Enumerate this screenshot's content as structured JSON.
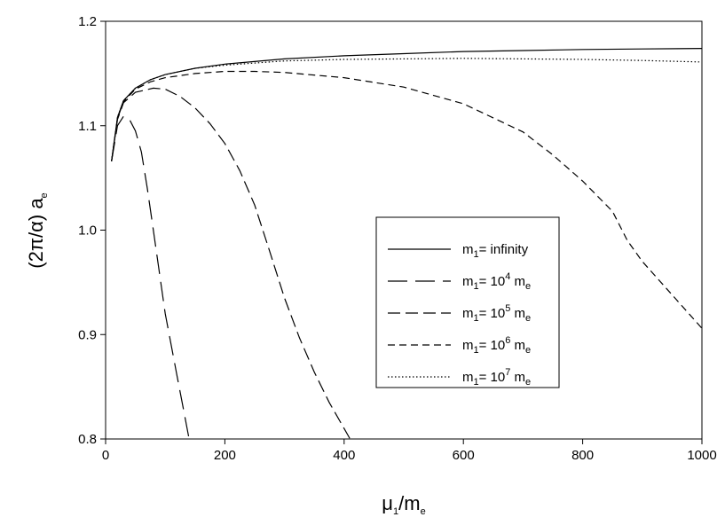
{
  "chart_data": {
    "type": "line",
    "xlabel": {
      "base": "μ",
      "base_sub": "1",
      "rest": "/m",
      "rest_sub": "e"
    },
    "ylabel": {
      "base": "(2π/α) a",
      "sub": "e"
    },
    "xlim": [
      0,
      1000
    ],
    "ylim": [
      0.8,
      1.2
    ],
    "x_ticks": [
      0,
      200,
      400,
      600,
      800,
      1000
    ],
    "y_ticks": [
      0.8,
      0.9,
      1.0,
      1.1,
      1.2
    ],
    "x_tick_labels": [
      "0",
      "200",
      "400",
      "600",
      "800",
      "1000"
    ],
    "y_tick_labels": [
      "0.8",
      "0.9",
      "1.0",
      "1.1",
      "1.2"
    ],
    "grid": false,
    "legend_position": "center-right",
    "series": [
      {
        "name": "m1= infinity",
        "label": {
          "pre": "m",
          "pre_sub": "1",
          "mid": "= infinity",
          "sup": "",
          "post": "",
          "post_sub": ""
        },
        "dash": "solid",
        "x": [
          10,
          20,
          30,
          50,
          75,
          100,
          150,
          200,
          300,
          400,
          500,
          600,
          700,
          800,
          900,
          1000
        ],
        "y": [
          1.066,
          1.108,
          1.124,
          1.136,
          1.144,
          1.149,
          1.155,
          1.159,
          1.164,
          1.167,
          1.169,
          1.171,
          1.172,
          1.173,
          1.1735,
          1.174
        ]
      },
      {
        "name": "m1= 10^4 me",
        "label": {
          "pre": "m",
          "pre_sub": "1",
          "mid": "= 10",
          "sup": "4",
          "post": " m",
          "post_sub": "e"
        },
        "dash": "long",
        "x": [
          10,
          20,
          30,
          40,
          50,
          60,
          70,
          80,
          90,
          100,
          110,
          120,
          130,
          140
        ],
        "y": [
          1.066,
          1.1,
          1.109,
          1.106,
          1.095,
          1.075,
          1.04,
          1.0,
          0.96,
          0.92,
          0.89,
          0.86,
          0.83,
          0.8
        ]
      },
      {
        "name": "m1= 10^5 me",
        "label": {
          "pre": "m",
          "pre_sub": "1",
          "mid": "= 10",
          "sup": "5",
          "post": " m",
          "post_sub": "e"
        },
        "dash": "medium",
        "x": [
          10,
          20,
          30,
          50,
          80,
          100,
          125,
          150,
          175,
          200,
          225,
          250,
          275,
          300,
          325,
          350,
          375,
          400,
          410
        ],
        "y": [
          1.066,
          1.106,
          1.122,
          1.132,
          1.136,
          1.135,
          1.128,
          1.117,
          1.102,
          1.083,
          1.057,
          1.024,
          0.98,
          0.935,
          0.897,
          0.864,
          0.835,
          0.81,
          0.8
        ]
      },
      {
        "name": "m1= 10^6 me",
        "label": {
          "pre": "m",
          "pre_sub": "1",
          "mid": "= 10",
          "sup": "6",
          "post": " m",
          "post_sub": "e"
        },
        "dash": "short",
        "x": [
          10,
          20,
          30,
          50,
          75,
          100,
          150,
          200,
          250,
          300,
          400,
          500,
          600,
          700,
          750,
          800,
          850,
          875,
          900,
          950,
          1000
        ],
        "y": [
          1.066,
          1.107,
          1.123,
          1.135,
          1.142,
          1.146,
          1.15,
          1.152,
          1.152,
          1.151,
          1.146,
          1.137,
          1.121,
          1.094,
          1.072,
          1.047,
          1.018,
          0.99,
          0.97,
          0.938,
          0.906
        ]
      },
      {
        "name": "m1= 10^7 me",
        "label": {
          "pre": "m",
          "pre_sub": "1",
          "mid": "= 10",
          "sup": "7",
          "post": " m",
          "post_sub": "e"
        },
        "dash": "dotted",
        "x": [
          10,
          20,
          30,
          50,
          75,
          100,
          150,
          200,
          300,
          400,
          500,
          600,
          700,
          800,
          900,
          1000
        ],
        "y": [
          1.066,
          1.108,
          1.124,
          1.136,
          1.144,
          1.149,
          1.155,
          1.158,
          1.162,
          1.1635,
          1.164,
          1.1645,
          1.164,
          1.1635,
          1.1625,
          1.161
        ]
      }
    ]
  }
}
